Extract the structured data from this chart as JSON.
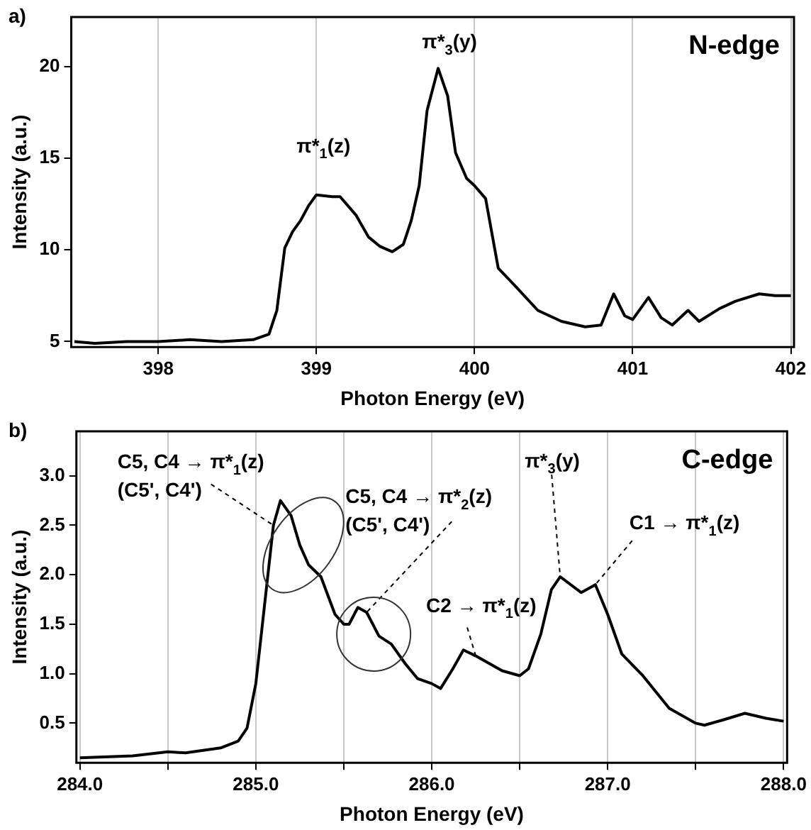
{
  "chart_data": [
    {
      "type": "line",
      "title": "a)",
      "xlabel": "Photon Energy (eV)",
      "ylabel": "Intensity (a.u.)",
      "color": "#000000",
      "grid": "x",
      "x": [
        397.47,
        397.6,
        397.8,
        398.0,
        398.2,
        398.4,
        398.6,
        398.7,
        398.75,
        398.8,
        398.85,
        398.9,
        398.95,
        399.0,
        399.1,
        399.15,
        399.25,
        399.33,
        399.4,
        399.48,
        399.55,
        399.6,
        399.65,
        399.7,
        399.77,
        399.83,
        399.88,
        399.95,
        400.0,
        400.07,
        400.15,
        400.25,
        400.4,
        400.55,
        400.7,
        400.8,
        400.88,
        400.95,
        401.0,
        401.1,
        401.18,
        401.25,
        401.35,
        401.42,
        401.55,
        401.65,
        401.8,
        401.9,
        402.0
      ],
      "values": [
        5.0,
        4.9,
        5.0,
        5.0,
        5.1,
        5.0,
        5.1,
        5.4,
        6.7,
        10.1,
        11.0,
        11.6,
        12.4,
        13.0,
        12.9,
        12.9,
        11.9,
        10.7,
        10.2,
        9.9,
        10.3,
        11.6,
        13.5,
        17.6,
        19.9,
        18.4,
        15.3,
        13.9,
        13.5,
        12.8,
        9.0,
        8.1,
        6.7,
        6.1,
        5.8,
        5.9,
        7.6,
        6.4,
        6.2,
        7.4,
        6.3,
        5.9,
        6.7,
        6.1,
        6.8,
        7.2,
        7.6,
        7.5,
        7.5
      ],
      "xlim": [
        397.45,
        402.02
      ],
      "xticks": [
        398,
        399,
        400,
        401,
        402
      ],
      "ylim": [
        4.7,
        22.7
      ],
      "yticks": [
        5,
        10,
        15,
        20
      ],
      "annotations": [
        "N-edge",
        {
          "text": "π*$_{1}$(z)",
          "x": 399.0,
          "y": 13.0
        },
        {
          "text": "π*$_{3}$(y)",
          "x": 399.77,
          "y": 19.9
        }
      ]
    },
    {
      "type": "line",
      "title": "b)",
      "xlabel": "Photon Energy (eV)",
      "ylabel": "Intensity (a.u.)",
      "color": "#000000",
      "grid": "x",
      "x": [
        284.0,
        284.3,
        284.5,
        284.6,
        284.8,
        284.9,
        284.95,
        285.0,
        285.05,
        285.1,
        285.14,
        285.2,
        285.25,
        285.3,
        285.37,
        285.45,
        285.5,
        285.53,
        285.58,
        285.63,
        285.7,
        285.77,
        285.85,
        285.92,
        286.0,
        286.05,
        286.12,
        286.18,
        286.25,
        286.4,
        286.5,
        286.55,
        286.62,
        286.68,
        286.73,
        286.85,
        286.93,
        287.0,
        287.08,
        287.2,
        287.35,
        287.5,
        287.55,
        287.65,
        287.78,
        287.9,
        288.0
      ],
      "values": [
        0.15,
        0.17,
        0.21,
        0.2,
        0.25,
        0.32,
        0.45,
        0.9,
        1.7,
        2.5,
        2.75,
        2.6,
        2.3,
        2.1,
        1.98,
        1.6,
        1.5,
        1.5,
        1.67,
        1.62,
        1.38,
        1.3,
        1.1,
        0.95,
        0.9,
        0.85,
        1.05,
        1.24,
        1.18,
        1.03,
        0.98,
        1.05,
        1.4,
        1.85,
        1.98,
        1.82,
        1.9,
        1.6,
        1.2,
        0.98,
        0.65,
        0.5,
        0.48,
        0.53,
        0.6,
        0.55,
        0.52
      ],
      "xlim": [
        283.98,
        288.02
      ],
      "xticks": [
        {
          "value": 284,
          "label": "284.0"
        },
        {
          "value": 284.5,
          "label": null
        },
        {
          "value": 285,
          "label": "285.0"
        },
        {
          "value": 285.5,
          "label": null
        },
        {
          "value": 286,
          "label": "286.0"
        },
        {
          "value": 286.5,
          "label": null
        },
        {
          "value": 287,
          "label": "287.0"
        },
        {
          "value": 287.5,
          "label": null
        },
        {
          "value": 288,
          "label": "288.0"
        }
      ],
      "ylim": [
        0.1,
        3.45
      ],
      "yticks": [
        0.5,
        {
          "value": 1,
          "label": "1.0"
        },
        1.5,
        {
          "value": 2,
          "label": "2.0"
        },
        2.5,
        {
          "value": 3,
          "label": "3.0"
        }
      ],
      "annotations": [
        "C-edge",
        {
          "text": "C5, C4 → π*$_{1}$(z)",
          "x": 285.1,
          "y": 2.5
        },
        {
          "text": "(C5', C4')",
          "x": 285.1,
          "y": 2.5
        },
        {
          "text": "C5, C4 → π*$_{2}$(z)",
          "x": 285.63,
          "y": 1.62
        },
        {
          "text": "(C5', C4')",
          "x": 285.63,
          "y": 1.62
        },
        {
          "text": "C2 → π*$_{1}$(z)",
          "x": 286.25,
          "y": 1.18
        },
        {
          "text": "π*$_{3}$(y)",
          "x": 286.73,
          "y": 1.98
        },
        {
          "text": "C1 → π*$_{1}$(z)",
          "x": 286.93,
          "y": 1.9
        }
      ]
    }
  ]
}
